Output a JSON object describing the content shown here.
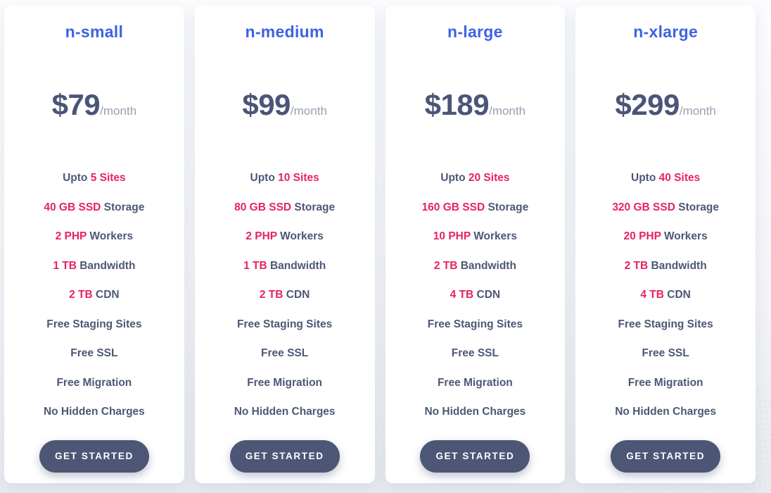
{
  "colors": {
    "accent_blue": "#3E63E1",
    "highlight_pink": "#E92260",
    "text_dark": "#4D5875",
    "text_price": "#4B5578",
    "text_muted": "#98A0B0",
    "button_bg": "#4D5675",
    "button_text": "#FFFFFF"
  },
  "cards": [
    {
      "title": "n-small",
      "price": "$79",
      "period": "/month",
      "features": [
        {
          "pre": "Upto ",
          "hl": "5 Sites",
          "post": ""
        },
        {
          "pre": "",
          "hl": "40 GB SSD",
          "post": " Storage"
        },
        {
          "pre": "",
          "hl": "2 PHP",
          "post": " Workers"
        },
        {
          "pre": "",
          "hl": "1 TB",
          "post": " Bandwidth"
        },
        {
          "pre": "",
          "hl": "2 TB",
          "post": " CDN"
        },
        {
          "pre": "Free Staging Sites",
          "hl": "",
          "post": ""
        },
        {
          "pre": "Free SSL",
          "hl": "",
          "post": ""
        },
        {
          "pre": "Free Migration",
          "hl": "",
          "post": ""
        },
        {
          "pre": "No Hidden Charges",
          "hl": "",
          "post": ""
        }
      ],
      "cta": "GET STARTED"
    },
    {
      "title": "n-medium",
      "price": "$99",
      "period": "/month",
      "features": [
        {
          "pre": "Upto ",
          "hl": "10 Sites",
          "post": ""
        },
        {
          "pre": "",
          "hl": "80 GB SSD",
          "post": " Storage"
        },
        {
          "pre": "",
          "hl": "2 PHP",
          "post": " Workers"
        },
        {
          "pre": "",
          "hl": "1 TB",
          "post": " Bandwidth"
        },
        {
          "pre": "",
          "hl": "2 TB",
          "post": " CDN"
        },
        {
          "pre": "Free Staging Sites",
          "hl": "",
          "post": ""
        },
        {
          "pre": "Free SSL",
          "hl": "",
          "post": ""
        },
        {
          "pre": "Free Migration",
          "hl": "",
          "post": ""
        },
        {
          "pre": "No Hidden Charges",
          "hl": "",
          "post": ""
        }
      ],
      "cta": "GET STARTED"
    },
    {
      "title": "n-large",
      "price": "$189",
      "period": "/month",
      "features": [
        {
          "pre": "Upto ",
          "hl": "20 Sites",
          "post": ""
        },
        {
          "pre": "",
          "hl": "160 GB SSD",
          "post": " Storage"
        },
        {
          "pre": "",
          "hl": "10 PHP",
          "post": " Workers"
        },
        {
          "pre": "",
          "hl": "2 TB",
          "post": " Bandwidth"
        },
        {
          "pre": "",
          "hl": "4 TB",
          "post": " CDN"
        },
        {
          "pre": "Free Staging Sites",
          "hl": "",
          "post": ""
        },
        {
          "pre": "Free SSL",
          "hl": "",
          "post": ""
        },
        {
          "pre": "Free Migration",
          "hl": "",
          "post": ""
        },
        {
          "pre": "No Hidden Charges",
          "hl": "",
          "post": ""
        }
      ],
      "cta": "GET STARTED"
    },
    {
      "title": "n-xlarge",
      "price": "$299",
      "period": "/month",
      "features": [
        {
          "pre": "Upto ",
          "hl": "40 Sites",
          "post": ""
        },
        {
          "pre": "",
          "hl": "320 GB SSD",
          "post": " Storage"
        },
        {
          "pre": "",
          "hl": "20 PHP",
          "post": " Workers"
        },
        {
          "pre": "",
          "hl": "2 TB",
          "post": " Bandwidth"
        },
        {
          "pre": "",
          "hl": "4 TB",
          "post": " CDN"
        },
        {
          "pre": "Free Staging Sites",
          "hl": "",
          "post": ""
        },
        {
          "pre": "Free SSL",
          "hl": "",
          "post": ""
        },
        {
          "pre": "Free Migration",
          "hl": "",
          "post": ""
        },
        {
          "pre": "No Hidden Charges",
          "hl": "",
          "post": ""
        }
      ],
      "cta": "GET STARTED"
    }
  ]
}
